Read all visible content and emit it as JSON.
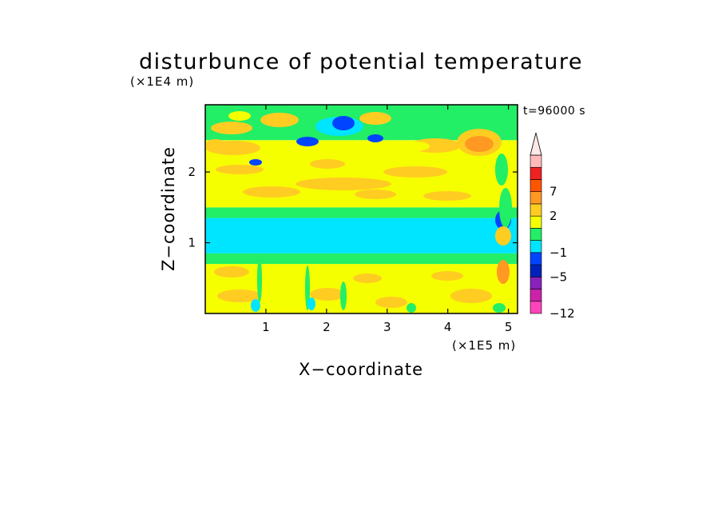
{
  "chart_data": {
    "type": "heatmap",
    "title": "disturbunce of potential temperature",
    "xlabel": "X−coordinate",
    "ylabel": "Z−coordinate",
    "x_unit": "(×1E5 m)",
    "y_unit": "(×1E4 m)",
    "time_label": "t=96000 s",
    "xlim": [
      0,
      5.15
    ],
    "ylim": [
      0,
      2.95
    ],
    "x_ticks": [
      {
        "value": 1,
        "label": "1"
      },
      {
        "value": 2,
        "label": "2"
      },
      {
        "value": 3,
        "label": "3"
      },
      {
        "value": 4,
        "label": "4"
      },
      {
        "value": 5,
        "label": "5"
      }
    ],
    "y_ticks": [
      {
        "value": 1,
        "label": "1"
      },
      {
        "value": 2,
        "label": "2"
      }
    ],
    "colorbar": {
      "extend": "max",
      "levels": [
        {
          "color": "#ff44bb",
          "label": "−12"
        },
        {
          "color": "#cc22aa",
          "label": ""
        },
        {
          "color": "#8822bb",
          "label": ""
        },
        {
          "color": "#0022bb",
          "label": "−5"
        },
        {
          "color": "#0044ff",
          "label": ""
        },
        {
          "color": "#00e5ff",
          "label": "−1"
        },
        {
          "color": "#22ee66",
          "label": ""
        },
        {
          "color": "#f5ff00",
          "label": ""
        },
        {
          "color": "#ffcc22",
          "label": "2"
        },
        {
          "color": "#ff9922",
          "label": ""
        },
        {
          "color": "#ff5500",
          "label": "7"
        },
        {
          "color": "#ee2222",
          "label": ""
        },
        {
          "color": "#ffbbbb",
          "label": ""
        }
      ],
      "top_color": "#ffe8e8"
    },
    "field_bands": [
      {
        "z0": 0.0,
        "z1": 0.7,
        "color": "#f5ff00"
      },
      {
        "z0": 0.7,
        "z1": 0.85,
        "color": "#22ee66"
      },
      {
        "z0": 0.85,
        "z1": 1.35,
        "color": "#00e5ff"
      },
      {
        "z0": 1.35,
        "z1": 1.5,
        "color": "#22ee66"
      },
      {
        "z0": 1.5,
        "z1": 2.45,
        "color": "#f5ff00"
      },
      {
        "z0": 2.45,
        "z1": 2.95,
        "color": "#22ee66"
      }
    ]
  }
}
